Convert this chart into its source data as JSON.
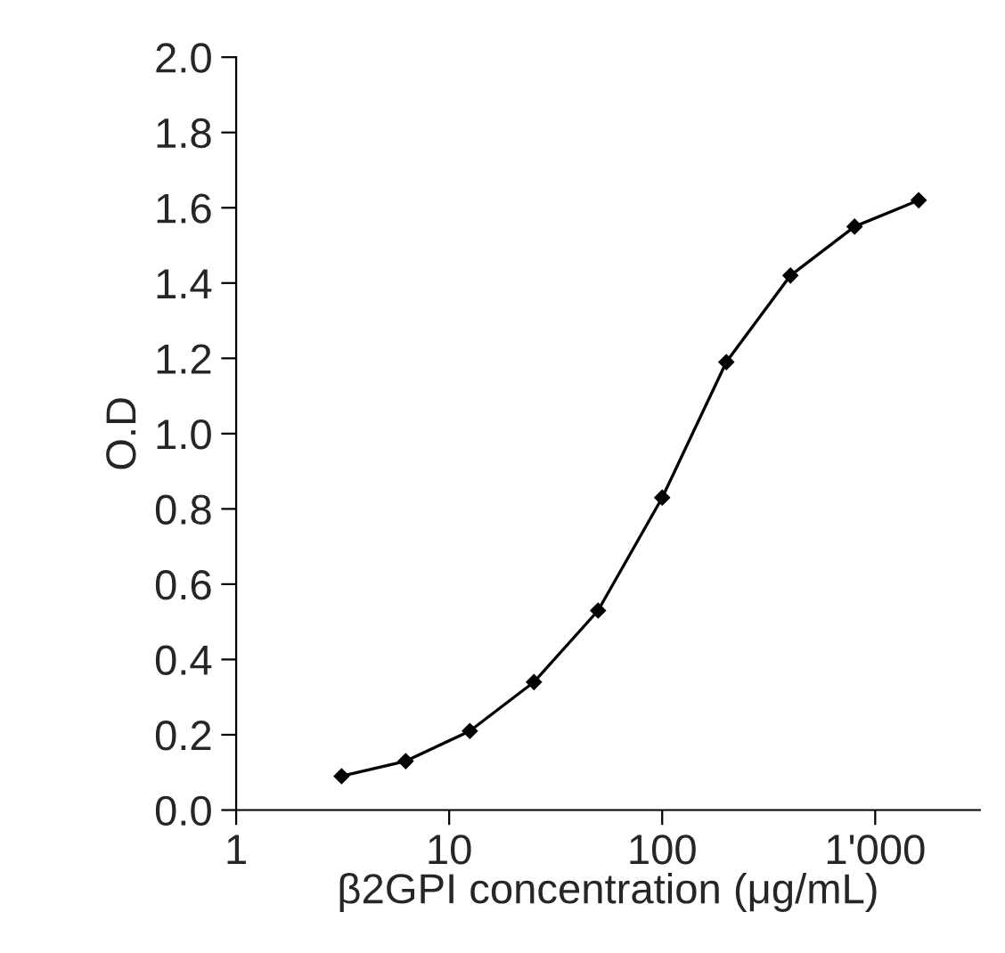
{
  "chart_data": {
    "type": "line",
    "xlabel": "β2GPI concentration (μg/mL)",
    "ylabel": "O.D",
    "log": "x",
    "marker": "diamond",
    "line_style": "solid",
    "grid": false,
    "legend": false,
    "xlim": [
      1,
      3100
    ],
    "xticks": [
      1,
      10,
      100,
      {
        "value": 1000,
        "label": "1'000"
      }
    ],
    "ylim": [
      0,
      2
    ],
    "yticks": [
      {
        "value": 0,
        "label": "0.0"
      },
      {
        "value": 0.2,
        "label": "0.2"
      },
      {
        "value": 0.4,
        "label": "0.4"
      },
      {
        "value": 0.6,
        "label": "0.6"
      },
      {
        "value": 0.8,
        "label": "0.8"
      },
      {
        "value": 1.0,
        "label": "1.0"
      },
      {
        "value": 1.2,
        "label": "1.2"
      },
      {
        "value": 1.4,
        "label": "1.4"
      },
      {
        "value": 1.6,
        "label": "1.6"
      },
      {
        "value": 1.8,
        "label": "1.8"
      },
      {
        "value": 2.0,
        "label": "2.0"
      }
    ],
    "series": [
      {
        "color": "#000000",
        "x": [
          3.125,
          6.25,
          12.5,
          25,
          50,
          100,
          200,
          400,
          800,
          1600
        ],
        "values": [
          0.09,
          0.13,
          0.21,
          0.34,
          0.53,
          0.83,
          1.19,
          1.42,
          1.55,
          1.62
        ]
      }
    ]
  }
}
